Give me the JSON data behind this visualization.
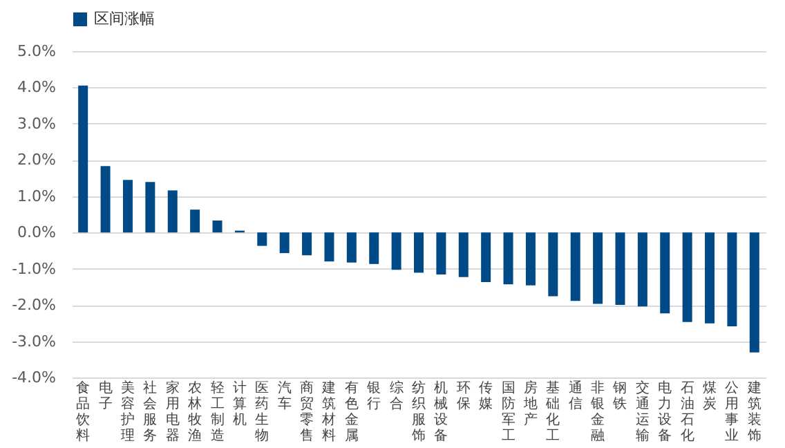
{
  "chart_data": {
    "type": "bar",
    "categories": [
      "食品饮料",
      "电子",
      "美容护理",
      "社会服务",
      "家用电器",
      "农林牧渔",
      "轻工制造",
      "计算机",
      "医药生物",
      "汽车",
      "商贸零售",
      "建筑材料",
      "有色金属",
      "银行",
      "综合",
      "纺织服饰",
      "机械设备",
      "环保",
      "传媒",
      "国防军工",
      "房地产",
      "基础化工",
      "通信",
      "非银金融",
      "钢铁",
      "交通运输",
      "电力设备",
      "石油石化",
      "煤炭",
      "公用事业",
      "建筑装饰"
    ],
    "series": [
      {
        "name": "区间涨幅",
        "color": "#004a87",
        "values": [
          4.05,
          1.83,
          1.45,
          1.39,
          1.16,
          0.63,
          0.33,
          0.05,
          -0.37,
          -0.57,
          -0.63,
          -0.8,
          -0.83,
          -0.87,
          -1.03,
          -1.11,
          -1.16,
          -1.23,
          -1.37,
          -1.43,
          -1.46,
          -1.76,
          -1.89,
          -1.97,
          -2.0,
          -2.04,
          -2.23,
          -2.47,
          -2.51,
          -2.59,
          -3.31
        ]
      }
    ],
    "ylim": [
      -4,
      5
    ],
    "yticks": [
      {
        "value": -4,
        "label": "-4.0%"
      },
      {
        "value": -3,
        "label": "-3.0%"
      },
      {
        "value": -2,
        "label": "-2.0%"
      },
      {
        "value": -1,
        "label": "-1.0%"
      },
      {
        "value": 0,
        "label": "0.0%"
      },
      {
        "value": 1,
        "label": "1.0%"
      },
      {
        "value": 2,
        "label": "2.0%"
      },
      {
        "value": 3,
        "label": "3.0%"
      },
      {
        "value": 4,
        "label": "4.0%"
      },
      {
        "value": 5,
        "label": "5.0%"
      }
    ],
    "grid": "y",
    "legend": "top"
  }
}
